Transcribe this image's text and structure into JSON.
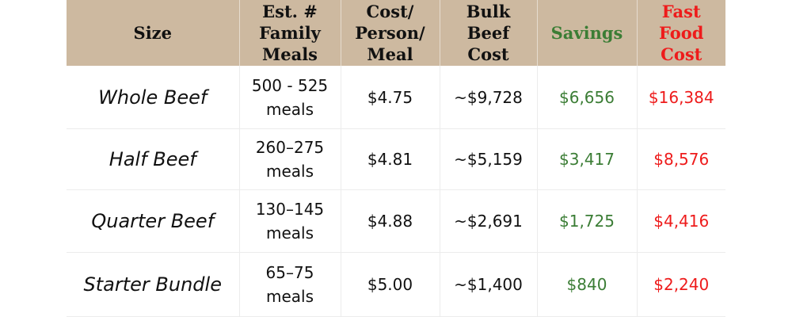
{
  "colors": {
    "header_bg": "#cdb9a0",
    "savings": "#3b7d35",
    "fast_food": "#ee1b1b",
    "text": "#111111"
  },
  "headers": [
    {
      "lines": [
        "Size"
      ]
    },
    {
      "lines": [
        "Est. #",
        "Family",
        "Meals"
      ]
    },
    {
      "lines": [
        "Cost/",
        "Person/",
        "Meal"
      ]
    },
    {
      "lines": [
        "Bulk",
        "Beef",
        "Cost"
      ]
    },
    {
      "lines": [
        "Savings"
      ]
    },
    {
      "lines": [
        "Fast",
        "Food",
        "Cost"
      ]
    }
  ],
  "rows": [
    {
      "size": "Whole Beef",
      "meals_range": "500 - 525",
      "meals_unit": "meals",
      "cost_per_meal": "$4.75",
      "bulk_cost": "~$9,728",
      "savings": "$6,656",
      "fast_food_cost": "$16,384"
    },
    {
      "size": "Half Beef",
      "meals_range": "260–275",
      "meals_unit": "meals",
      "cost_per_meal": "$4.81",
      "bulk_cost": "~$5,159",
      "savings": "$3,417",
      "fast_food_cost": "$8,576"
    },
    {
      "size": "Quarter Beef",
      "meals_range": "130–145",
      "meals_unit": "meals",
      "cost_per_meal": "$4.88",
      "bulk_cost": "~$2,691",
      "savings": "$1,725",
      "fast_food_cost": "$4,416"
    },
    {
      "size": "Starter Bundle",
      "meals_range": "65–75",
      "meals_unit": "meals",
      "cost_per_meal": "$5.00",
      "bulk_cost": "~$1,400",
      "savings": "$840",
      "fast_food_cost": "$2,240"
    }
  ]
}
